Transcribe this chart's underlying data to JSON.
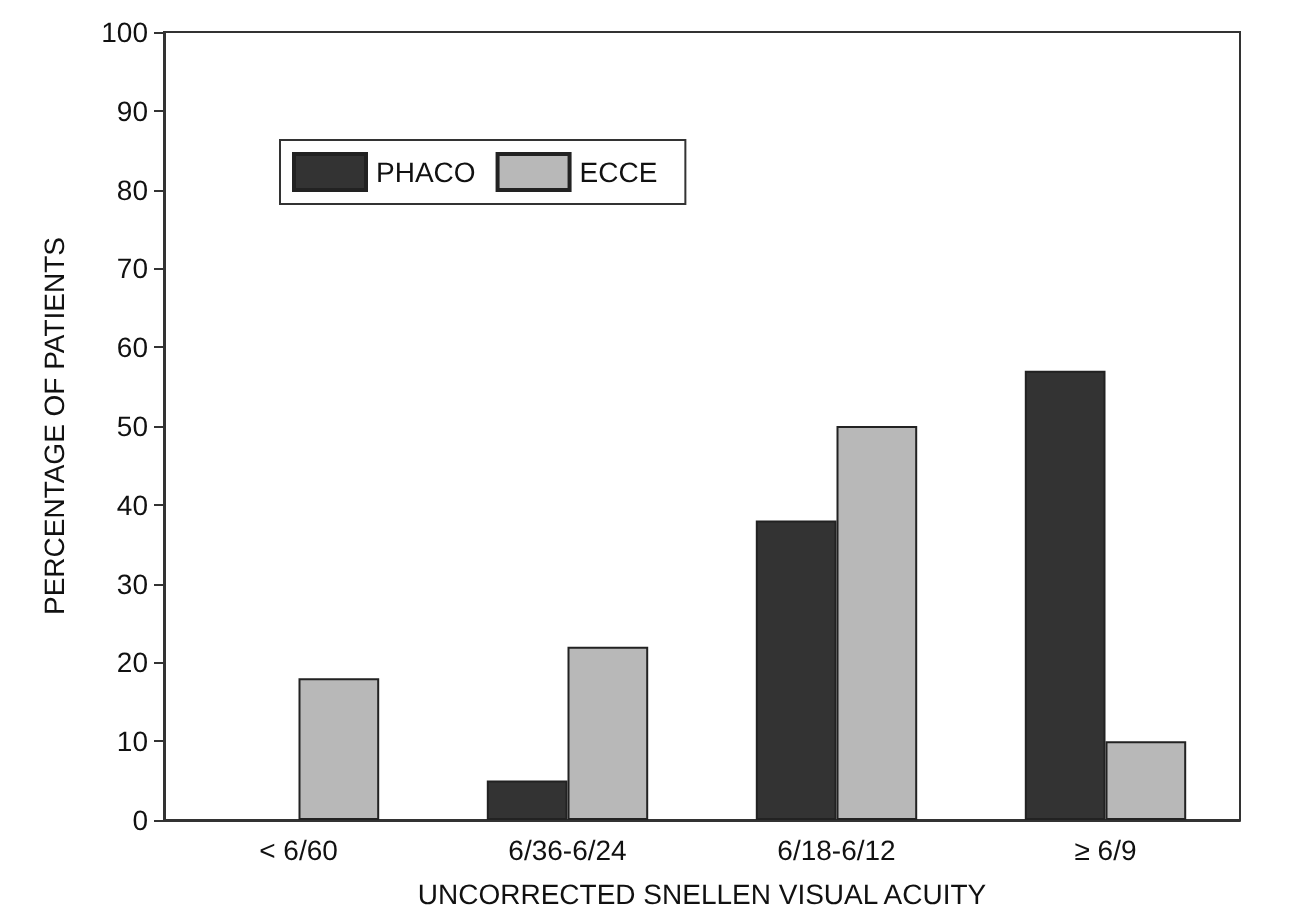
{
  "chart_data": {
    "type": "bar",
    "xlabel": "UNCORRECTED SNELLEN VISUAL ACUITY",
    "ylabel": "PERCENTAGE OF PATIENTS",
    "categories": [
      "< 6/60",
      "6/36-6/24",
      "6/18-6/12",
      "≥ 6/9"
    ],
    "series": [
      {
        "name": "PHACO",
        "color": "#333333",
        "values": [
          0,
          5,
          38,
          57
        ]
      },
      {
        "name": "ECCE",
        "color": "#b8b8b8",
        "values": [
          18,
          22,
          50,
          10
        ]
      }
    ],
    "ylim": [
      0,
      100
    ],
    "yticks": [
      0,
      10,
      20,
      30,
      40,
      50,
      60,
      70,
      80,
      90,
      100
    ],
    "grid": false,
    "legend": "top left"
  }
}
